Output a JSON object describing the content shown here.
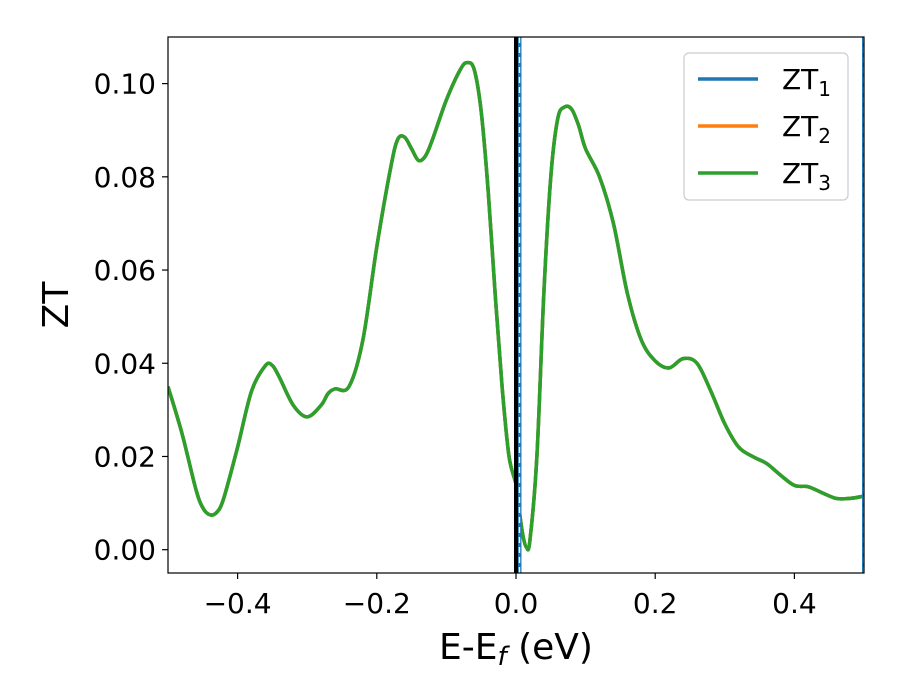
{
  "chart_data": {
    "type": "line",
    "title": "",
    "xlabel": "E-E",
    "xlabel_sub": "f",
    "xlabel_unit": " (eV)",
    "ylabel": "ZT",
    "xlim": [
      -0.5,
      0.5
    ],
    "ylim": [
      -0.005,
      0.11
    ],
    "x_ticks": [
      -0.4,
      -0.2,
      0.0,
      0.2,
      0.4
    ],
    "x_tick_labels": [
      "−0.4",
      "−0.2",
      "0.0",
      "0.2",
      "0.4"
    ],
    "y_ticks": [
      0.0,
      0.02,
      0.04,
      0.06,
      0.08,
      0.1
    ],
    "y_tick_labels": [
      "0.00",
      "0.02",
      "0.04",
      "0.06",
      "0.08",
      "0.10"
    ],
    "grid": false,
    "legend_position": "top-right",
    "fermi_line_x": 0.0,
    "dashed_lines_x": [
      0.005,
      0.5
    ],
    "series": [
      {
        "name": "ZT",
        "sub": "1",
        "color": "#1f77b4"
      },
      {
        "name": "ZT",
        "sub": "2",
        "color": "#ff7f0e"
      },
      {
        "name": "ZT",
        "sub": "3",
        "color": "#2ca02c"
      }
    ],
    "x": [
      -0.5,
      -0.48,
      -0.46,
      -0.45,
      -0.44,
      -0.43,
      -0.42,
      -0.4,
      -0.38,
      -0.36,
      -0.35,
      -0.34,
      -0.32,
      -0.3,
      -0.28,
      -0.27,
      -0.26,
      -0.24,
      -0.22,
      -0.2,
      -0.18,
      -0.17,
      -0.16,
      -0.15,
      -0.14,
      -0.13,
      -0.12,
      -0.1,
      -0.08,
      -0.07,
      -0.06,
      -0.05,
      -0.04,
      -0.03,
      -0.02,
      -0.01,
      0.0,
      0.005,
      0.01,
      0.015,
      0.02,
      0.03,
      0.04,
      0.05,
      0.06,
      0.07,
      0.08,
      0.09,
      0.1,
      0.12,
      0.14,
      0.16,
      0.18,
      0.2,
      0.22,
      0.24,
      0.26,
      0.28,
      0.3,
      0.32,
      0.34,
      0.36,
      0.38,
      0.4,
      0.42,
      0.44,
      0.46,
      0.48,
      0.5
    ],
    "y": [
      0.035,
      0.025,
      0.013,
      0.009,
      0.0075,
      0.008,
      0.011,
      0.022,
      0.034,
      0.0395,
      0.0395,
      0.037,
      0.031,
      0.0285,
      0.031,
      0.0335,
      0.0345,
      0.035,
      0.045,
      0.065,
      0.082,
      0.088,
      0.0885,
      0.086,
      0.0835,
      0.0845,
      0.088,
      0.0965,
      0.103,
      0.1045,
      0.103,
      0.094,
      0.077,
      0.055,
      0.035,
      0.02,
      0.014,
      0.008,
      0.003,
      0.0005,
      0.002,
      0.02,
      0.055,
      0.08,
      0.0925,
      0.095,
      0.0945,
      0.091,
      0.086,
      0.08,
      0.07,
      0.055,
      0.045,
      0.0405,
      0.039,
      0.041,
      0.04,
      0.034,
      0.027,
      0.022,
      0.02,
      0.0185,
      0.016,
      0.0138,
      0.0135,
      0.0122,
      0.011,
      0.011,
      0.0115
    ]
  }
}
